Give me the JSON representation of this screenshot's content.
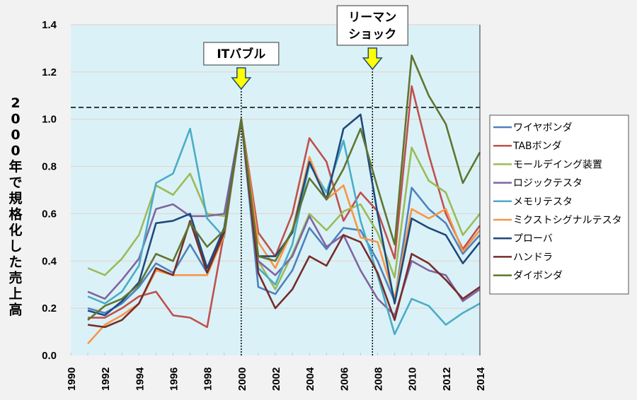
{
  "chart_data": {
    "type": "line",
    "title": "",
    "xlabel": "",
    "ylabel": "2000年で規格化した売上高",
    "xlim": [
      1990,
      2014
    ],
    "ylim": [
      0,
      1.4
    ],
    "xticks": [
      "1990",
      "1992",
      "1994",
      "1996",
      "1998",
      "2000",
      "2002",
      "2004",
      "2006",
      "2008",
      "2010",
      "2012",
      "2014"
    ],
    "yticks": [
      "0.0",
      "0.2",
      "0.4",
      "0.6",
      "0.8",
      "1.0",
      "1.2",
      "1.4"
    ],
    "grid": true,
    "legend_position": "right",
    "x": [
      1991,
      1992,
      1993,
      1994,
      1995,
      1996,
      1997,
      1998,
      1999,
      2000,
      2001,
      2002,
      2003,
      2004,
      2005,
      2006,
      2007,
      2008,
      2009,
      2010,
      2011,
      2012,
      2013,
      2014
    ],
    "series": [
      {
        "name": "ワイヤボンダ",
        "color": "#4f81bd",
        "values": [
          0.2,
          0.18,
          0.22,
          0.29,
          0.39,
          0.35,
          0.47,
          0.35,
          0.53,
          1.0,
          0.29,
          0.26,
          0.36,
          0.54,
          0.45,
          0.54,
          0.53,
          0.4,
          0.23,
          0.71,
          0.62,
          0.56,
          0.43,
          0.51
        ]
      },
      {
        "name": "TABボンダ",
        "color": "#c0504d",
        "values": [
          0.16,
          0.16,
          0.2,
          0.25,
          0.27,
          0.17,
          0.16,
          0.12,
          0.52,
          1.0,
          0.52,
          0.42,
          0.6,
          0.92,
          0.82,
          0.57,
          0.69,
          0.61,
          0.41,
          1.14,
          0.85,
          0.6,
          0.45,
          0.55
        ]
      },
      {
        "name": "モールデイング装置",
        "color": "#9bbb59",
        "values": [
          0.37,
          0.34,
          0.41,
          0.51,
          0.72,
          0.68,
          0.77,
          0.6,
          0.59,
          1.0,
          0.4,
          0.28,
          0.43,
          0.6,
          0.53,
          0.61,
          0.64,
          0.52,
          0.33,
          0.88,
          0.74,
          0.69,
          0.51,
          0.6
        ]
      },
      {
        "name": "ロジックテスタ",
        "color": "#8064a2",
        "values": [
          0.27,
          0.24,
          0.32,
          0.41,
          0.62,
          0.64,
          0.59,
          0.59,
          0.6,
          1.0,
          0.4,
          0.34,
          0.42,
          0.59,
          0.46,
          0.51,
          0.36,
          0.24,
          0.17,
          0.4,
          0.36,
          0.34,
          0.23,
          0.28
        ]
      },
      {
        "name": "メモリテスタ",
        "color": "#4bacc6",
        "values": [
          0.25,
          0.22,
          0.27,
          0.38,
          0.73,
          0.77,
          0.96,
          0.58,
          0.5,
          1.0,
          0.37,
          0.3,
          0.47,
          0.81,
          0.69,
          0.91,
          0.57,
          0.34,
          0.09,
          0.24,
          0.21,
          0.13,
          0.18,
          0.22
        ]
      },
      {
        "name": "ミクストシグナルテスタ",
        "color": "#f79646",
        "values": [
          0.05,
          0.13,
          0.17,
          0.22,
          0.36,
          0.34,
          0.34,
          0.34,
          0.51,
          1.0,
          0.48,
          0.37,
          0.53,
          0.84,
          0.66,
          0.72,
          0.5,
          0.48,
          0.24,
          0.62,
          0.58,
          0.62,
          0.44,
          0.53
        ]
      },
      {
        "name": "プローバ",
        "color": "#1f497d",
        "values": [
          0.19,
          0.17,
          0.23,
          0.31,
          0.56,
          0.57,
          0.6,
          0.37,
          0.54,
          1.0,
          0.42,
          0.42,
          0.52,
          0.82,
          0.66,
          0.96,
          1.02,
          0.6,
          0.22,
          0.58,
          0.54,
          0.51,
          0.39,
          0.48
        ]
      },
      {
        "name": "ハンドラ",
        "color": "#772c2a",
        "values": [
          0.13,
          0.12,
          0.15,
          0.22,
          0.37,
          0.34,
          0.57,
          0.35,
          0.52,
          1.0,
          0.35,
          0.2,
          0.28,
          0.42,
          0.38,
          0.51,
          0.48,
          0.35,
          0.15,
          0.43,
          0.39,
          0.32,
          0.24,
          0.29
        ]
      },
      {
        "name": "ダイボンダ",
        "color": "#5f7530",
        "values": [
          0.15,
          0.21,
          0.24,
          0.3,
          0.43,
          0.4,
          0.56,
          0.46,
          0.53,
          1.0,
          0.42,
          0.4,
          0.53,
          0.75,
          0.66,
          0.79,
          0.96,
          0.71,
          0.47,
          1.27,
          1.1,
          0.98,
          0.73,
          0.86
        ]
      }
    ],
    "reference_line": {
      "y": 1.05,
      "style": "dashed"
    },
    "annotations": [
      {
        "x": 2000,
        "lines": [
          "ITバブル"
        ]
      },
      {
        "x": 2007.7,
        "lines": [
          "リーマン",
          "ショック"
        ]
      }
    ]
  }
}
